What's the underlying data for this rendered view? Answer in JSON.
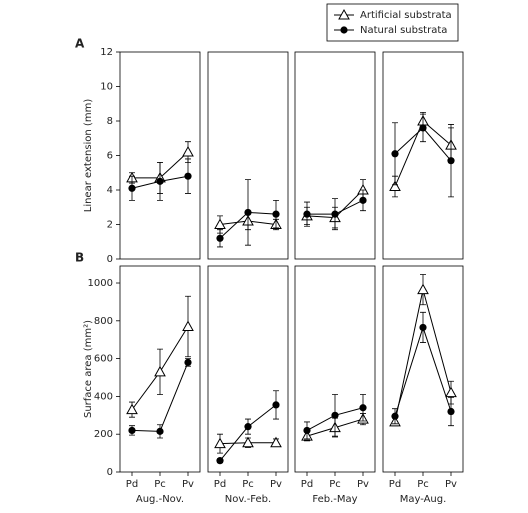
{
  "chart_data": [
    {
      "type": "line",
      "panel_label": "A",
      "ylabel": "Linear extension (mm)",
      "ylim": [
        0,
        12
      ],
      "yticks": [
        0,
        2,
        4,
        6,
        8,
        10,
        12
      ],
      "series": [
        {
          "name": "Artificial substrata",
          "marker": "triangle",
          "color": "#000000",
          "values": [
            4.7,
            4.7,
            6.2
          ],
          "errors": [
            0.3,
            0.9,
            0.6
          ]
        },
        {
          "name": "Natural substrata",
          "marker": "circle",
          "color": "#000000",
          "values": [
            4.1,
            4.5,
            4.8
          ],
          "errors": [
            0.7,
            1.1,
            1.0
          ]
        }
      ]
    },
    {
      "type": "line",
      "ylim": [
        0,
        12
      ],
      "series": [
        {
          "marker": "triangle",
          "color": "#000000",
          "values": [
            2.0,
            2.2,
            2.0
          ],
          "errors": [
            0.5,
            0.5,
            0.3
          ]
        },
        {
          "marker": "circle",
          "color": "#000000",
          "values": [
            1.2,
            2.7,
            2.6
          ],
          "errors": [
            0.5,
            1.9,
            0.8
          ]
        }
      ]
    },
    {
      "type": "line",
      "ylim": [
        0,
        12
      ],
      "series": [
        {
          "marker": "triangle",
          "color": "#000000",
          "values": [
            2.5,
            2.4,
            4.0
          ],
          "errors": [
            0.5,
            0.6,
            0.6
          ]
        },
        {
          "marker": "circle",
          "color": "#000000",
          "values": [
            2.6,
            2.6,
            3.4
          ],
          "errors": [
            0.7,
            0.9,
            0.6
          ]
        }
      ]
    },
    {
      "type": "line",
      "ylim": [
        0,
        12
      ],
      "series": [
        {
          "marker": "triangle",
          "color": "#000000",
          "values": [
            4.2,
            8.0,
            6.6
          ],
          "errors": [
            0.6,
            0.5,
            1.0
          ]
        },
        {
          "marker": "circle",
          "color": "#000000",
          "values": [
            6.1,
            7.6,
            5.7
          ],
          "errors": [
            1.8,
            0.8,
            2.1
          ]
        }
      ]
    },
    {
      "type": "line",
      "panel_label": "B",
      "ylabel": "Surface area (mm²)",
      "xlabel": "Aug.-Nov.",
      "categories": [
        "Pd",
        "Pc",
        "Pv"
      ],
      "ylim": [
        0,
        1090
      ],
      "yticks": [
        0,
        200,
        400,
        600,
        800,
        1000
      ],
      "series": [
        {
          "marker": "triangle",
          "color": "#000000",
          "values": [
            330,
            530,
            770
          ],
          "errors": [
            40,
            120,
            160
          ]
        },
        {
          "marker": "circle",
          "color": "#000000",
          "values": [
            220,
            215,
            580
          ],
          "errors": [
            25,
            35,
            20
          ]
        }
      ]
    },
    {
      "type": "line",
      "xlabel": "Nov.-Feb.",
      "categories": [
        "Pd",
        "Pc",
        "Pv"
      ],
      "ylim": [
        0,
        1090
      ],
      "series": [
        {
          "marker": "triangle",
          "color": "#000000",
          "values": [
            150,
            155,
            155
          ],
          "errors": [
            50,
            25,
            20
          ]
        },
        {
          "marker": "circle",
          "color": "#000000",
          "values": [
            60,
            240,
            355
          ],
          "errors": [
            10,
            40,
            75
          ]
        }
      ]
    },
    {
      "type": "line",
      "xlabel": "Feb.-May",
      "categories": [
        "Pd",
        "Pc",
        "Pv"
      ],
      "ylim": [
        0,
        1090
      ],
      "series": [
        {
          "marker": "triangle",
          "color": "#000000",
          "values": [
            190,
            235,
            280
          ],
          "errors": [
            25,
            50,
            30
          ]
        },
        {
          "marker": "circle",
          "color": "#000000",
          "values": [
            220,
            300,
            340
          ],
          "errors": [
            45,
            110,
            70
          ]
        }
      ]
    },
    {
      "type": "line",
      "xlabel": "May-Aug.",
      "categories": [
        "Pd",
        "Pc",
        "Pv"
      ],
      "ylim": [
        0,
        1090
      ],
      "series": [
        {
          "marker": "triangle",
          "color": "#000000",
          "values": [
            265,
            965,
            420
          ],
          "errors": [
            20,
            80,
            60
          ]
        },
        {
          "marker": "circle",
          "color": "#000000",
          "values": [
            295,
            765,
            320
          ],
          "errors": [
            40,
            80,
            75
          ]
        }
      ]
    }
  ]
}
